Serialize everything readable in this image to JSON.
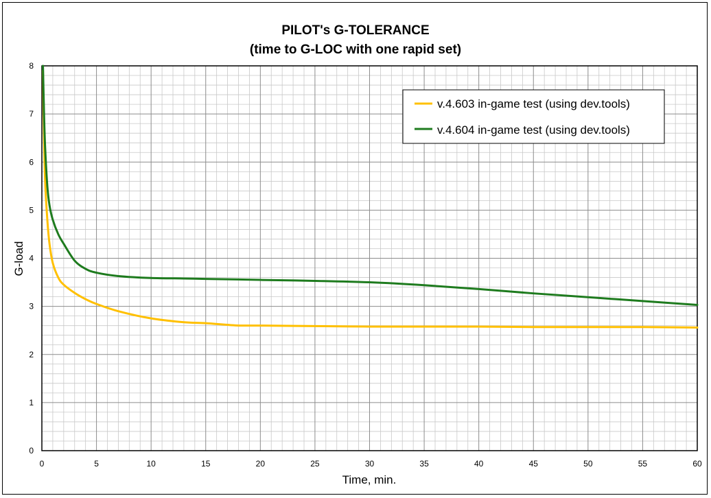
{
  "chart_data": {
    "type": "line",
    "title": "PILOT's G-TOLERANCE",
    "subtitle": "(time to G-LOC with one rapid set)",
    "xlabel": "Time, min.",
    "ylabel": "G-load",
    "xlim": [
      0,
      60
    ],
    "ylim": [
      0,
      8
    ],
    "xticks": [
      "0",
      "5",
      "10",
      "15",
      "20",
      "25",
      "30",
      "35",
      "40",
      "45",
      "50",
      "55",
      "60"
    ],
    "yticks": [
      "0",
      "1",
      "2",
      "3",
      "4",
      "5",
      "6",
      "7",
      "8"
    ],
    "grid": true,
    "legend_position": "top-right",
    "series": [
      {
        "name": "v.4.603 in-game test (using dev.tools)",
        "color": "#FFC000",
        "x": [
          0.1,
          0.2,
          0.3,
          0.5,
          0.7,
          1,
          1.5,
          2,
          3,
          4,
          5,
          7,
          10,
          13,
          15,
          18,
          20,
          25,
          30,
          35,
          40,
          45,
          50,
          55,
          60
        ],
        "y": [
          7.9,
          6.5,
          5.6,
          4.8,
          4.3,
          3.9,
          3.6,
          3.45,
          3.28,
          3.15,
          3.05,
          2.9,
          2.75,
          2.67,
          2.65,
          2.6,
          2.6,
          2.59,
          2.58,
          2.58,
          2.58,
          2.57,
          2.57,
          2.57,
          2.56
        ]
      },
      {
        "name": "v.4.604 in-game test (using dev.tools)",
        "color": "#1E7B1E",
        "x": [
          0.1,
          0.2,
          0.3,
          0.5,
          0.7,
          1,
          1.5,
          2,
          3,
          4,
          5,
          7,
          10,
          13,
          15,
          18,
          20,
          25,
          30,
          35,
          40,
          45,
          50,
          55,
          60
        ],
        "y": [
          8.0,
          7.0,
          6.3,
          5.5,
          5.1,
          4.8,
          4.5,
          4.3,
          3.95,
          3.78,
          3.7,
          3.63,
          3.59,
          3.58,
          3.57,
          3.56,
          3.55,
          3.53,
          3.5,
          3.44,
          3.36,
          3.27,
          3.19,
          3.11,
          3.03
        ]
      }
    ]
  }
}
